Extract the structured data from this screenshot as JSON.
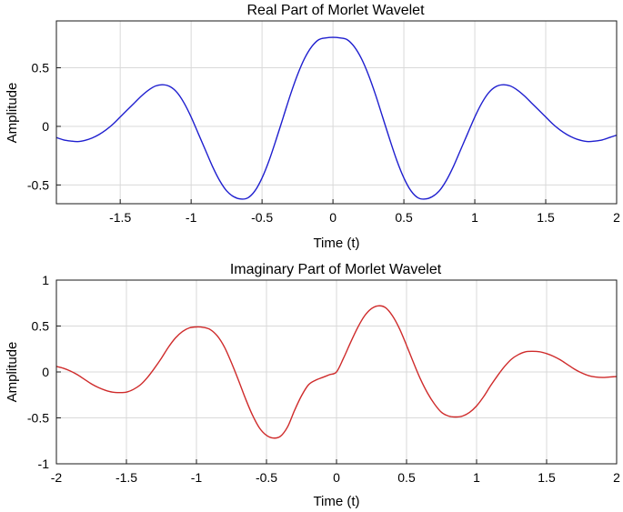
{
  "chart_data": [
    {
      "type": "line",
      "title": "Real Part of Morlet Wavelet",
      "xlabel": "Time (t)",
      "ylabel": "Amplitude",
      "xlim": [
        -1.95,
        2.0
      ],
      "ylim": [
        -0.66,
        0.9
      ],
      "xticks": [
        -1.5,
        -1,
        -0.5,
        0,
        0.5,
        1,
        1.5,
        2
      ],
      "xtick_labels": [
        "-1.5",
        "-1",
        "-0.5",
        "0",
        "0.5",
        "1",
        "1.5",
        "2"
      ],
      "yticks": [
        -0.5,
        0,
        0.5
      ],
      "ytick_labels": [
        "-0.5",
        "0",
        "0.5"
      ],
      "grid": true,
      "series": [
        {
          "color": "#1f1fcf",
          "x": [
            -1.95,
            -1.9,
            -1.85,
            -1.8,
            -1.75,
            -1.7,
            -1.65,
            -1.6,
            -1.55,
            -1.5,
            -1.45,
            -1.4,
            -1.35,
            -1.3,
            -1.25,
            -1.2,
            -1.15,
            -1.1,
            -1.05,
            -1.0,
            -0.95,
            -0.9,
            -0.85,
            -0.8,
            -0.75,
            -0.7,
            -0.65,
            -0.6,
            -0.55,
            -0.5,
            -0.45,
            -0.4,
            -0.35,
            -0.3,
            -0.25,
            -0.2,
            -0.15,
            -0.1,
            -0.05,
            0.0,
            0.05,
            0.1,
            0.15,
            0.2,
            0.25,
            0.3,
            0.35,
            0.4,
            0.45,
            0.5,
            0.55,
            0.6,
            0.65,
            0.7,
            0.75,
            0.8,
            0.85,
            0.9,
            0.95,
            1.0,
            1.05,
            1.1,
            1.15,
            1.2,
            1.25,
            1.3,
            1.35,
            1.4,
            1.45,
            1.5,
            1.55,
            1.6,
            1.65,
            1.7,
            1.75,
            1.8,
            1.85,
            1.9,
            1.95,
            2.0
          ],
          "y": [
            -0.095,
            -0.115,
            -0.125,
            -0.13,
            -0.12,
            -0.1,
            -0.07,
            -0.03,
            0.02,
            0.08,
            0.14,
            0.2,
            0.26,
            0.31,
            0.345,
            0.355,
            0.34,
            0.29,
            0.2,
            0.08,
            -0.06,
            -0.2,
            -0.34,
            -0.46,
            -0.55,
            -0.6,
            -0.62,
            -0.61,
            -0.55,
            -0.44,
            -0.29,
            -0.11,
            0.08,
            0.27,
            0.44,
            0.58,
            0.68,
            0.74,
            0.755,
            0.76,
            0.755,
            0.74,
            0.68,
            0.58,
            0.44,
            0.27,
            0.08,
            -0.11,
            -0.29,
            -0.44,
            -0.55,
            -0.61,
            -0.62,
            -0.6,
            -0.55,
            -0.46,
            -0.34,
            -0.2,
            -0.06,
            0.08,
            0.2,
            0.29,
            0.34,
            0.355,
            0.345,
            0.31,
            0.26,
            0.2,
            0.14,
            0.08,
            0.02,
            -0.03,
            -0.07,
            -0.1,
            -0.12,
            -0.13,
            -0.125,
            -0.115,
            -0.095,
            -0.075
          ]
        }
      ]
    },
    {
      "type": "line",
      "title": "Imaginary Part of Morlet Wavelet",
      "xlabel": "Time (t)",
      "ylabel": "Amplitude",
      "xlim": [
        -2,
        2
      ],
      "ylim": [
        -1,
        1
      ],
      "xticks": [
        -2,
        -1.5,
        -1,
        -0.5,
        0,
        0.5,
        1,
        1.5,
        2
      ],
      "xtick_labels": [
        "-2",
        "-1.5",
        "-1",
        "-0.5",
        "0",
        "0.5",
        "1",
        "1.5",
        "2"
      ],
      "yticks": [
        -1,
        -0.5,
        0,
        0.5,
        1
      ],
      "ytick_labels": [
        "-1",
        "-0.5",
        "0",
        "0.5",
        "1"
      ],
      "grid": true,
      "series": [
        {
          "color": "#cf2b2b",
          "x": [
            -2.0,
            -1.95,
            -1.9,
            -1.85,
            -1.8,
            -1.75,
            -1.7,
            -1.65,
            -1.6,
            -1.55,
            -1.5,
            -1.45,
            -1.4,
            -1.35,
            -1.3,
            -1.25,
            -1.2,
            -1.15,
            -1.1,
            -1.05,
            -1.0,
            -0.95,
            -0.9,
            -0.85,
            -0.8,
            -0.75,
            -0.7,
            -0.65,
            -0.6,
            -0.55,
            -0.5,
            -0.45,
            -0.4,
            -0.35,
            -0.3,
            -0.25,
            -0.2,
            -0.15,
            -0.1,
            -0.05,
            0.0,
            0.05,
            0.1,
            0.15,
            0.2,
            0.25,
            0.3,
            0.35,
            0.4,
            0.45,
            0.5,
            0.55,
            0.6,
            0.65,
            0.7,
            0.75,
            0.8,
            0.85,
            0.9,
            0.95,
            1.0,
            1.05,
            1.1,
            1.15,
            1.2,
            1.25,
            1.3,
            1.35,
            1.4,
            1.45,
            1.5,
            1.55,
            1.6,
            1.65,
            1.7,
            1.75,
            1.8,
            1.85,
            1.9,
            1.95,
            2.0
          ],
          "y": [
            0.06,
            0.04,
            0.01,
            -0.03,
            -0.08,
            -0.13,
            -0.17,
            -0.2,
            -0.22,
            -0.225,
            -0.22,
            -0.19,
            -0.14,
            -0.06,
            0.04,
            0.15,
            0.27,
            0.37,
            0.44,
            0.48,
            0.49,
            0.485,
            0.46,
            0.39,
            0.27,
            0.1,
            -0.09,
            -0.29,
            -0.47,
            -0.61,
            -0.69,
            -0.72,
            -0.7,
            -0.6,
            -0.42,
            -0.26,
            -0.14,
            -0.09,
            -0.06,
            -0.03,
            0.0,
            0.15,
            0.32,
            0.48,
            0.61,
            0.69,
            0.72,
            0.7,
            0.61,
            0.47,
            0.29,
            0.1,
            -0.08,
            -0.23,
            -0.35,
            -0.44,
            -0.48,
            -0.49,
            -0.48,
            -0.44,
            -0.37,
            -0.27,
            -0.15,
            -0.04,
            0.06,
            0.14,
            0.19,
            0.22,
            0.225,
            0.22,
            0.2,
            0.17,
            0.13,
            0.08,
            0.03,
            -0.01,
            -0.04,
            -0.055,
            -0.06,
            -0.055,
            -0.05
          ]
        }
      ]
    }
  ]
}
